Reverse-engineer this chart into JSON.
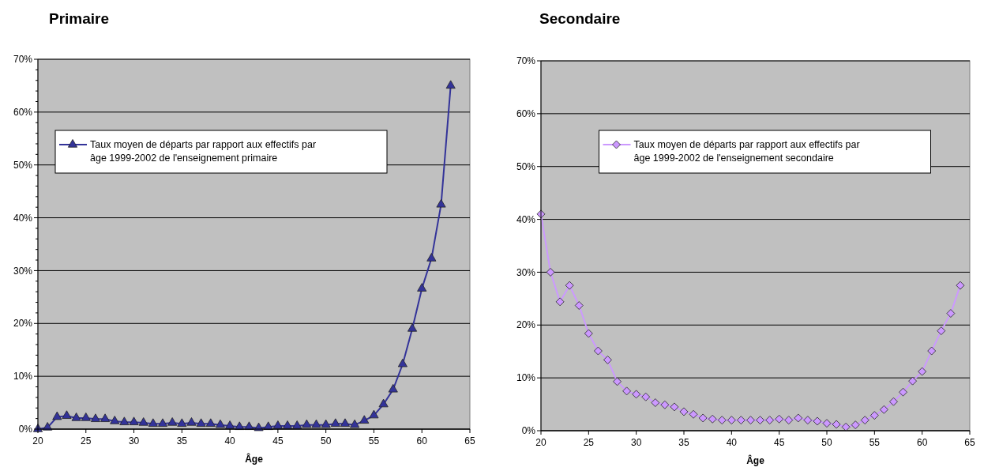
{
  "chart_data": [
    {
      "type": "line",
      "title": "Primaire",
      "xlabel": "Âge",
      "x": [
        20,
        21,
        22,
        23,
        24,
        25,
        26,
        27,
        28,
        29,
        30,
        31,
        32,
        33,
        34,
        35,
        36,
        37,
        38,
        39,
        40,
        41,
        42,
        43,
        44,
        45,
        46,
        47,
        48,
        49,
        50,
        51,
        52,
        53,
        54,
        55,
        56,
        57,
        58,
        59,
        60,
        61,
        62,
        63
      ],
      "series": [
        {
          "name": "Taux moyen de départs par rapport aux effectifs par âge 1999-2002 de l'enseignement primaire",
          "color": "#333399",
          "values": [
            0,
            0.3,
            2.3,
            2.5,
            2.1,
            2.1,
            1.9,
            1.9,
            1.5,
            1.3,
            1.3,
            1.2,
            1.0,
            1.0,
            1.2,
            1.0,
            1.2,
            1.0,
            1.0,
            0.8,
            0.6,
            0.4,
            0.4,
            0.2,
            0.4,
            0.6,
            0.6,
            0.6,
            0.8,
            0.8,
            0.8,
            1.0,
            1.0,
            0.8,
            1.6,
            2.6,
            4.7,
            7.5,
            12.3,
            19,
            26.6,
            32.3,
            42.5,
            65
          ]
        }
      ],
      "xlim": [
        20,
        65
      ],
      "xticks": [
        20,
        25,
        30,
        35,
        40,
        45,
        50,
        55,
        60,
        65
      ],
      "ylim": [
        0,
        70
      ],
      "yticks": [
        {
          "value": 0,
          "label": "0%"
        },
        {
          "value": 2,
          "label": null
        },
        {
          "value": 4,
          "label": null
        },
        {
          "value": 6,
          "label": null
        },
        {
          "value": 8,
          "label": null
        },
        {
          "value": 10,
          "label": "10%"
        },
        {
          "value": 12,
          "label": null
        },
        {
          "value": 14,
          "label": null
        },
        {
          "value": 16,
          "label": null
        },
        {
          "value": 18,
          "label": null
        },
        {
          "value": 20,
          "label": "20%"
        },
        {
          "value": 22,
          "label": null
        },
        {
          "value": 24,
          "label": null
        },
        {
          "value": 26,
          "label": null
        },
        {
          "value": 28,
          "label": null
        },
        {
          "value": 30,
          "label": "30%"
        },
        {
          "value": 32,
          "label": null
        },
        {
          "value": 34,
          "label": null
        },
        {
          "value": 36,
          "label": null
        },
        {
          "value": 38,
          "label": null
        },
        {
          "value": 40,
          "label": "40%"
        },
        {
          "value": 42,
          "label": null
        },
        {
          "value": 44,
          "label": null
        },
        {
          "value": 46,
          "label": null
        },
        {
          "value": 48,
          "label": null
        },
        {
          "value": 50,
          "label": "50%"
        },
        {
          "value": 52,
          "label": null
        },
        {
          "value": 54,
          "label": null
        },
        {
          "value": 56,
          "label": null
        },
        {
          "value": 58,
          "label": null
        },
        {
          "value": 60,
          "label": "60%"
        },
        {
          "value": 62,
          "label": null
        },
        {
          "value": 64,
          "label": null
        },
        {
          "value": 66,
          "label": null
        },
        {
          "value": 68,
          "label": null
        },
        {
          "value": 70,
          "label": "70%"
        }
      ],
      "grid": "y",
      "legend": "top left",
      "marker": "triangle",
      "line_style": "solid"
    },
    {
      "type": "line",
      "title": "Secondaire",
      "xlabel": "Âge",
      "x": [
        20,
        21,
        22,
        23,
        24,
        25,
        26,
        27,
        28,
        29,
        30,
        31,
        32,
        33,
        34,
        35,
        36,
        37,
        38,
        39,
        40,
        41,
        42,
        43,
        44,
        45,
        46,
        47,
        48,
        49,
        50,
        51,
        52,
        53,
        54,
        55,
        56,
        57,
        58,
        59,
        60,
        61,
        62,
        63,
        64
      ],
      "series": [
        {
          "name": "Taux moyen de départs par rapport aux effectifs par âge 1999-2002 de l'enseignement secondaire",
          "color": "#cc99ff",
          "values": [
            41,
            30,
            24.4,
            27.5,
            23.7,
            18.4,
            15.1,
            13.4,
            9.3,
            7.5,
            6.9,
            6.4,
            5.3,
            4.9,
            4.5,
            3.6,
            3.1,
            2.4,
            2.2,
            2.0,
            2.0,
            2.0,
            2.0,
            2.0,
            2.0,
            2.2,
            2.0,
            2.4,
            2.0,
            1.8,
            1.4,
            1.2,
            0.7,
            1.1,
            2.0,
            2.9,
            4.0,
            5.5,
            7.3,
            9.4,
            11.2,
            15.1,
            18.9,
            22.2,
            27.5
          ]
        }
      ],
      "xlim": [
        20,
        65
      ],
      "xticks": [
        20,
        25,
        30,
        35,
        40,
        45,
        50,
        55,
        60,
        65
      ],
      "ylim": [
        0,
        70
      ],
      "yticks": [
        {
          "value": 0,
          "label": "0%"
        },
        {
          "value": 10,
          "label": "10%"
        },
        {
          "value": 20,
          "label": "20%"
        },
        {
          "value": 30,
          "label": "30%"
        },
        {
          "value": 40,
          "label": "40%"
        },
        {
          "value": 50,
          "label": "50%"
        },
        {
          "value": 60,
          "label": "60%"
        },
        {
          "value": 70,
          "label": "70%"
        }
      ],
      "grid": "y",
      "legend": "top",
      "marker": "diamond",
      "line_style": "solid"
    }
  ]
}
